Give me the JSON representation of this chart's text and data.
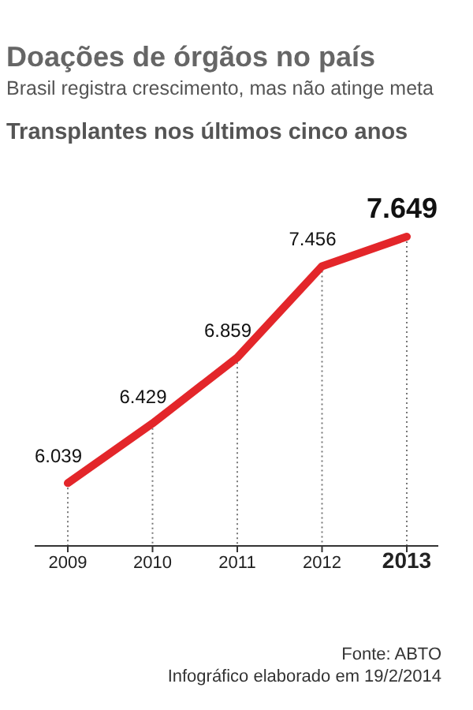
{
  "chart_data": {
    "type": "line",
    "title": "Doações de órgãos no país",
    "subtitle": "Brasil registra crescimento, mas não atinge meta",
    "ylabel": "Transplantes nos últimos cinco anos",
    "categories": [
      "2009",
      "2010",
      "2011",
      "2012",
      "2013"
    ],
    "values": [
      6039,
      6429,
      6859,
      7456,
      7649
    ],
    "value_labels": [
      "6.039",
      "6.429",
      "6.859",
      "7.456",
      "7.649"
    ],
    "color": "#e3262a",
    "marker": "none",
    "grid": "x",
    "annotations": [
      "Fonte: ABTO",
      "Infográfico elaborado em 19/2/2014"
    ]
  }
}
